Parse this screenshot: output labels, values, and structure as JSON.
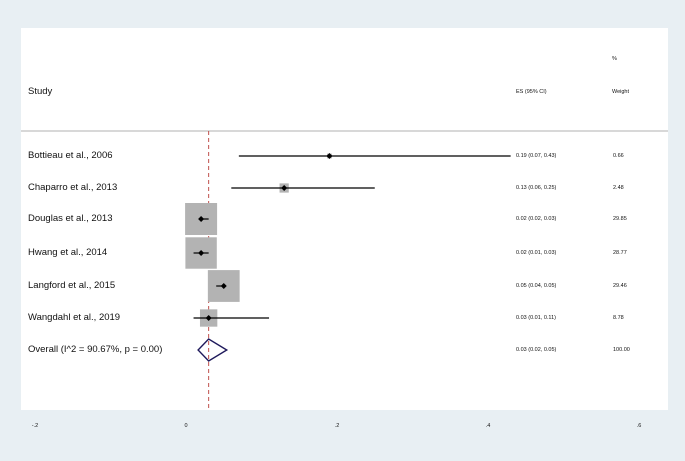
{
  "header": {
    "study_label": "Study",
    "es_label": "ES (95% CI)",
    "weight_pct": "%",
    "weight_label": "Weight"
  },
  "chart_data": {
    "type": "forest",
    "columns": [
      "Study",
      "ES (95% CI)",
      "% Weight"
    ],
    "x_ticks": [
      -0.2,
      0,
      0.2,
      0.4,
      0.6
    ],
    "x_tick_labels": [
      "-.2",
      "0",
      ".2",
      ".4",
      ".6"
    ],
    "xlim": [
      -0.2,
      0.6
    ],
    "pooled_line_x": 0.03,
    "studies": [
      {
        "label": "Bottieau et al., 2006",
        "es": 0.19,
        "lo": 0.07,
        "hi": 0.43,
        "es_text": "0.19 (0.07, 0.43)",
        "weight": 0.66,
        "weight_text": "0.66"
      },
      {
        "label": "Chaparro et al., 2013",
        "es": 0.13,
        "lo": 0.06,
        "hi": 0.25,
        "es_text": "0.13 (0.06, 0.25)",
        "weight": 2.48,
        "weight_text": "2.48"
      },
      {
        "label": "Douglas et al., 2013",
        "es": 0.02,
        "lo": 0.02,
        "hi": 0.03,
        "es_text": "0.02 (0.02, 0.03)",
        "weight": 29.85,
        "weight_text": "29.85"
      },
      {
        "label": "Hwang et al., 2014",
        "es": 0.02,
        "lo": 0.01,
        "hi": 0.03,
        "es_text": "0.02 (0.01, 0.03)",
        "weight": 28.77,
        "weight_text": "28.77"
      },
      {
        "label": "Langford et al., 2015",
        "es": 0.05,
        "lo": 0.04,
        "hi": 0.05,
        "es_text": "0.05 (0.04, 0.05)",
        "weight": 29.46,
        "weight_text": "29.46"
      },
      {
        "label": "Wangdahl et al., 2019",
        "es": 0.03,
        "lo": 0.01,
        "hi": 0.11,
        "es_text": "0.03 (0.01, 0.11)",
        "weight": 8.78,
        "weight_text": "8.78"
      }
    ],
    "overall": {
      "label": "Overall  (I^2 = 90.67%, p = 0.00)",
      "es": 0.03,
      "lo": 0.02,
      "hi": 0.05,
      "es_text": "0.03 (0.02, 0.05)",
      "weight_text": "100.00"
    },
    "colors": {
      "box": "#b3b3b3",
      "ci_line": "#000000",
      "pooled_line": "#c0504d",
      "diamond": "#1f1a5c",
      "separator": "#cccccc"
    }
  }
}
